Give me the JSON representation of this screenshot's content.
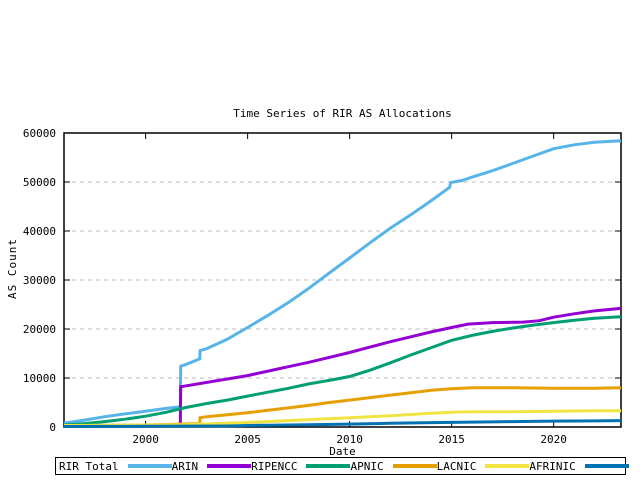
{
  "chart_data": {
    "type": "line",
    "title": "Time Series of RIR AS Allocations",
    "xlabel": "Date",
    "ylabel": "AS Count",
    "xlim": [
      1996,
      2023.3
    ],
    "ylim": [
      0,
      60000
    ],
    "xticks": {
      "values": [
        2000,
        2005,
        2010,
        2015,
        2020
      ],
      "labels": [
        "2000",
        "2005",
        "2010",
        "2015",
        "2020"
      ]
    },
    "yticks": {
      "values": [
        0,
        10000,
        20000,
        30000,
        40000,
        50000,
        60000
      ],
      "labels": [
        "0",
        "10000",
        "20000",
        "30000",
        "40000",
        "50000",
        "60000"
      ]
    },
    "grid": "horizontal-dashed-at-yticks",
    "grid_color": "#bcbcbc",
    "legend_position": "bottom-outside-boxed",
    "series": [
      {
        "name": "RIR Total",
        "color": "#56b4e9",
        "x": [
          1996,
          1997,
          1998,
          1999,
          2000,
          2001,
          2001.7,
          2001.72,
          2002,
          2002.65,
          2002.67,
          2003,
          2004,
          2005,
          2006,
          2007,
          2008,
          2009,
          2010,
          2011,
          2012,
          2013,
          2014,
          2014.9,
          2014.95,
          2015.5,
          2016,
          2017,
          2018,
          2019,
          2020,
          2021,
          2022,
          2023.3
        ],
        "y": [
          800,
          1400,
          2100,
          2700,
          3200,
          3800,
          4100,
          12400,
          12800,
          13900,
          15600,
          16000,
          17900,
          20300,
          22800,
          25400,
          28300,
          31400,
          34500,
          37600,
          40600,
          43300,
          46200,
          48900,
          49900,
          50300,
          51000,
          52300,
          53800,
          55300,
          56800,
          57600,
          58100,
          58400
        ]
      },
      {
        "name": "ARIN",
        "color": "#9400d3",
        "x": [
          1996,
          2000,
          2001.7,
          2001.72,
          2002,
          2003,
          2004,
          2005,
          2006,
          2007,
          2008,
          2009,
          2010,
          2011,
          2012,
          2013,
          2014,
          2015,
          2015.8,
          2017,
          2018.5,
          2019.3,
          2020,
          2021,
          2022,
          2023.3
        ],
        "y": [
          300,
          350,
          400,
          8200,
          8400,
          9100,
          9800,
          10500,
          11400,
          12300,
          13200,
          14200,
          15200,
          16300,
          17400,
          18400,
          19400,
          20300,
          21000,
          21300,
          21400,
          21700,
          22400,
          23100,
          23700,
          24200
        ]
      },
      {
        "name": "RIPENCC",
        "color": "#009e73",
        "x": [
          1996,
          1997,
          1998,
          1999,
          2000,
          2001,
          2002,
          2003,
          2004,
          2005,
          2006,
          2007,
          2008,
          2009,
          2010,
          2011,
          2012,
          2013,
          2014,
          2015,
          2016,
          2017,
          2018,
          2019,
          2020,
          2021,
          2022,
          2023.3
        ],
        "y": [
          400,
          700,
          1100,
          1600,
          2200,
          3000,
          4000,
          4800,
          5500,
          6300,
          7100,
          7900,
          8800,
          9500,
          10300,
          11600,
          13100,
          14700,
          16200,
          17700,
          18700,
          19500,
          20200,
          20800,
          21300,
          21800,
          22200,
          22500
        ]
      },
      {
        "name": "APNIC",
        "color": "#e69f00",
        "x": [
          1996,
          2000,
          2002.65,
          2002.67,
          2003,
          2004,
          2005,
          2006,
          2007,
          2008,
          2009,
          2010,
          2011,
          2012,
          2013,
          2014,
          2015,
          2015.5,
          2016,
          2018,
          2020,
          2022,
          2023.3
        ],
        "y": [
          200,
          400,
          700,
          1900,
          2100,
          2500,
          2900,
          3400,
          3900,
          4400,
          5000,
          5500,
          6000,
          6500,
          7000,
          7500,
          7800,
          7900,
          8000,
          8000,
          7900,
          7900,
          8000
        ]
      },
      {
        "name": "LACNIC",
        "color": "#f0e442",
        "x": [
          1996,
          2000,
          2002,
          2004,
          2006,
          2008,
          2010,
          2012,
          2014,
          2015,
          2016,
          2018,
          2020,
          2022,
          2023.3
        ],
        "y": [
          300,
          400,
          500,
          800,
          1100,
          1500,
          1900,
          2300,
          2800,
          3000,
          3100,
          3100,
          3200,
          3300,
          3300
        ]
      },
      {
        "name": "AFRINIC",
        "color": "#0072b2",
        "x": [
          1996,
          2000,
          2004,
          2005,
          2006,
          2008,
          2010,
          2012,
          2014,
          2016,
          2018,
          2020,
          2022,
          2023.3
        ],
        "y": [
          100,
          150,
          200,
          300,
          350,
          450,
          600,
          750,
          900,
          1000,
          1100,
          1200,
          1250,
          1300
        ]
      }
    ]
  }
}
